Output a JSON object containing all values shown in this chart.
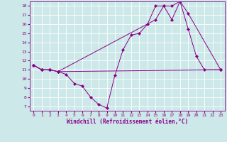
{
  "xlabel": "Windchill (Refroidissement éolien,°C)",
  "bg_color": "#cce8e8",
  "line_color": "#880088",
  "grid_color": "#aadddd",
  "xlim": [
    -0.5,
    23.5
  ],
  "ylim": [
    6.5,
    18.5
  ],
  "xticks": [
    0,
    1,
    2,
    3,
    4,
    5,
    6,
    7,
    8,
    9,
    10,
    11,
    12,
    13,
    14,
    15,
    16,
    17,
    18,
    19,
    20,
    21,
    22,
    23
  ],
  "yticks": [
    7,
    8,
    9,
    10,
    11,
    12,
    13,
    14,
    15,
    16,
    17,
    18
  ],
  "line1_x": [
    0,
    1,
    2,
    3,
    4,
    5,
    6,
    7,
    8,
    9,
    10,
    11,
    12,
    13,
    14,
    15,
    16,
    17,
    18,
    19,
    20,
    21,
    23
  ],
  "line1_y": [
    11.5,
    11.0,
    11.0,
    10.8,
    10.5,
    9.5,
    9.2,
    8.0,
    7.2,
    6.8,
    10.4,
    13.2,
    14.8,
    15.0,
    16.0,
    18.0,
    18.0,
    16.5,
    18.5,
    15.5,
    12.5,
    11.0,
    11.0
  ],
  "line2_x": [
    0,
    1,
    2,
    3,
    15,
    16,
    17,
    18,
    19,
    23
  ],
  "line2_y": [
    11.5,
    11.0,
    11.0,
    10.8,
    16.5,
    18.0,
    18.0,
    18.5,
    17.2,
    11.0
  ],
  "line3_x": [
    0,
    1,
    2,
    3,
    23
  ],
  "line3_y": [
    11.5,
    11.0,
    11.0,
    10.8,
    11.0
  ]
}
